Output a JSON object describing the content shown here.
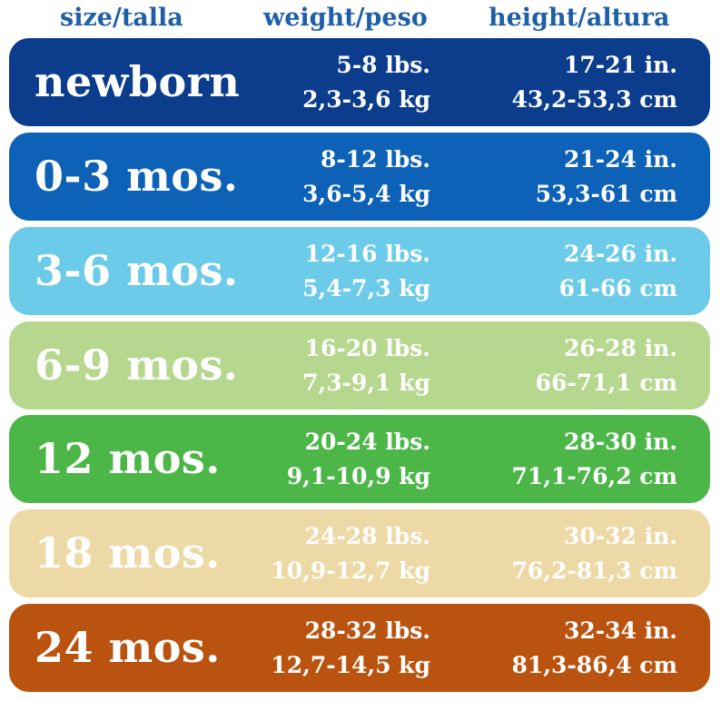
{
  "header": {
    "size": "size/talla",
    "weight": "weight/peso",
    "height": "height/altura",
    "color": "#1f5fa8"
  },
  "rows": [
    {
      "size": "newborn",
      "weight_lbs": "5-8 lbs.",
      "weight_kg": "2,3-3,6 kg",
      "height_in": "17-21 in.",
      "height_cm": "43,2-53,3 cm",
      "color": "#0b3d8c"
    },
    {
      "size": "0-3 mos.",
      "weight_lbs": "8-12 lbs.",
      "weight_kg": "3,6-5,4 kg",
      "height_in": "21-24 in.",
      "height_cm": "53,3-61 cm",
      "color": "#0d61b6"
    },
    {
      "size": "3-6 mos.",
      "weight_lbs": "12-16 lbs.",
      "weight_kg": "5,4-7,3 kg",
      "height_in": "24-26 in.",
      "height_cm": "61-66 cm",
      "color": "#6ccbe9"
    },
    {
      "size": "6-9 mos.",
      "weight_lbs": "16-20 lbs.",
      "weight_kg": "7,3-9,1 kg",
      "height_in": "26-28 in.",
      "height_cm": "66-71,1 cm",
      "color": "#b5d88e"
    },
    {
      "size": "12 mos.",
      "weight_lbs": "20-24 lbs.",
      "weight_kg": "9,1-10,9 kg",
      "height_in": "28-30 in.",
      "height_cm": "71,1-76,2 cm",
      "color": "#4cb748"
    },
    {
      "size": "18 mos.",
      "weight_lbs": "24-28 lbs.",
      "weight_kg": "10,9-12,7 kg",
      "height_in": "30-32 in.",
      "height_cm": "76,2-81,3 cm",
      "color": "#ecd9a6"
    },
    {
      "size": "24 mos.",
      "weight_lbs": "28-32 lbs.",
      "weight_kg": "12,7-14,5 kg",
      "height_in": "32-34 in.",
      "height_cm": "81,3-86,4 cm",
      "color": "#b9530f"
    }
  ]
}
